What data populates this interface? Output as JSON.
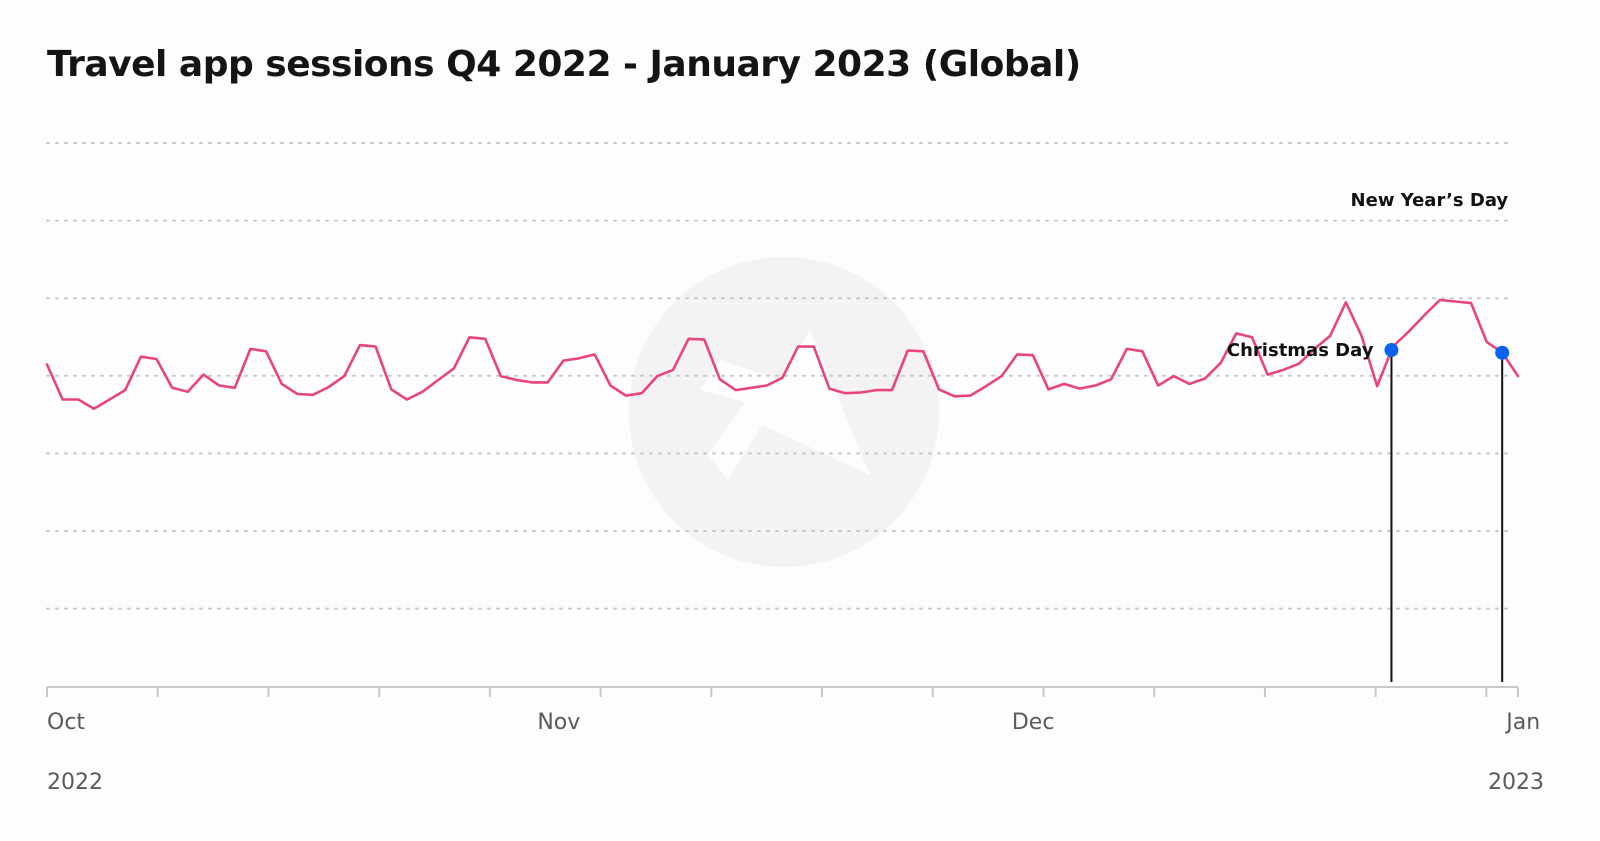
{
  "title": "Travel app sessions Q4 2022 - January 2023 (Global)",
  "colors": {
    "line": "#e8457a",
    "marker": "#0a63f0",
    "grid": "#c8c8c8",
    "axis": "#c8c8c8",
    "annotation_line": "#111111"
  },
  "watermark_icon": "adjust-logo-icon",
  "chart_data": {
    "type": "line",
    "title": "Travel app sessions Q4 2022 - January 2023 (Global)",
    "x_start": "2022-10-01",
    "x_end": "2023-01-02",
    "gridlines": 7,
    "grid": true,
    "legend": "none",
    "ylabel": "",
    "xlabel": "",
    "x_ticks": [
      {
        "label": "Oct",
        "date": "2022-10-01"
      },
      {
        "label": "Nov",
        "date": "2022-11-01"
      },
      {
        "label": "Dec",
        "date": "2022-12-01"
      },
      {
        "label": "Jan",
        "date": "2023-01-01"
      }
    ],
    "year_labels": [
      {
        "label": "2022",
        "position": "left"
      },
      {
        "label": "2023",
        "position": "right"
      }
    ],
    "series": [
      {
        "values": [
          4.15,
          3.7,
          3.7,
          3.58,
          3.7,
          3.82,
          4.25,
          4.22,
          3.85,
          3.8,
          4.02,
          3.88,
          3.85,
          4.35,
          4.32,
          3.9,
          3.77,
          3.76,
          3.86,
          4.0,
          4.4,
          4.38,
          3.83,
          3.7,
          3.8,
          3.95,
          4.1,
          4.5,
          4.48,
          4.0,
          3.95,
          3.92,
          3.92,
          4.2,
          4.23,
          4.28,
          3.88,
          3.75,
          3.78,
          4.0,
          4.08,
          4.48,
          4.47,
          3.96,
          3.82,
          3.85,
          3.88,
          3.98,
          4.38,
          4.38,
          3.84,
          3.78,
          3.79,
          3.82,
          3.82,
          4.33,
          4.32,
          3.83,
          3.74,
          3.75,
          3.87,
          4.0,
          4.28,
          4.27,
          3.83,
          3.9,
          3.84,
          3.88,
          3.96,
          4.35,
          4.32,
          3.88,
          4.0,
          3.9,
          3.97,
          4.17,
          4.55,
          4.5,
          4.02,
          4.08,
          4.16,
          4.35,
          4.52,
          4.95,
          4.52,
          3.87,
          4.38,
          4.57,
          4.78,
          4.98,
          4.96,
          4.94,
          4.44,
          4.3,
          4.0
        ]
      }
    ],
    "annotations": [
      {
        "label": "Christmas Day",
        "date": "2022-12-25"
      },
      {
        "label": "New Year’s Day",
        "date": "2023-01-01"
      }
    ]
  }
}
